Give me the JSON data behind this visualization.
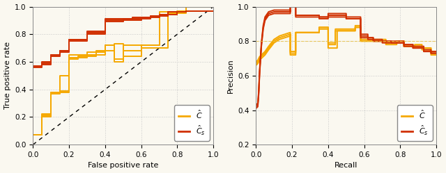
{
  "fig_width": 6.4,
  "fig_height": 2.49,
  "dpi": 100,
  "background_color": "#faf8f0",
  "grid_color": "#c8c8c8",
  "color_C_hat": "#F5A800",
  "color_Cs_hat": "#D03000",
  "roc_xlabel": "False positive rate",
  "roc_ylabel": "True positive rate",
  "pr_xlabel": "Recall",
  "pr_ylabel": "Precision",
  "roc_xlim": [
    0,
    1
  ],
  "roc_ylim": [
    0,
    1
  ],
  "pr_xlim": [
    0,
    1
  ],
  "pr_ylim": [
    0.2,
    1.0
  ],
  "legend_label_C": "$\\hat{C}$",
  "legend_label_Cs": "$\\hat{C}_s$",
  "roc_C_hat_curves": [
    [
      [
        0,
        0,
        0.05,
        0.05,
        0.1,
        0.1,
        0.15,
        0.15,
        0.2,
        0.2,
        0.3,
        0.3,
        0.4,
        0.4,
        0.45,
        0.45,
        0.5,
        0.5,
        0.6,
        0.6,
        0.75,
        0.75,
        0.85,
        0.85,
        1.0
      ],
      [
        0,
        0.07,
        0.07,
        0.22,
        0.22,
        0.38,
        0.38,
        0.5,
        0.5,
        0.65,
        0.65,
        0.67,
        0.67,
        0.72,
        0.72,
        0.62,
        0.62,
        0.72,
        0.72,
        0.7,
        0.7,
        0.95,
        0.95,
        0.97,
        0.97
      ]
    ],
    [
      [
        0,
        0,
        0.05,
        0.05,
        0.1,
        0.1,
        0.15,
        0.15,
        0.2,
        0.2,
        0.25,
        0.25,
        0.35,
        0.35,
        0.45,
        0.45,
        0.5,
        0.5,
        0.6,
        0.6,
        0.7,
        0.7,
        0.8,
        0.8,
        0.85,
        0.85,
        1.0
      ],
      [
        0,
        0.07,
        0.07,
        0.2,
        0.2,
        0.37,
        0.37,
        0.39,
        0.39,
        0.62,
        0.62,
        0.64,
        0.64,
        0.68,
        0.68,
        0.73,
        0.73,
        0.64,
        0.64,
        0.72,
        0.72,
        0.94,
        0.94,
        0.97,
        0.97,
        1.0,
        1.0
      ]
    ],
    [
      [
        0,
        0,
        0.05,
        0.05,
        0.1,
        0.1,
        0.2,
        0.2,
        0.3,
        0.3,
        0.4,
        0.4,
        0.45,
        0.45,
        0.5,
        0.5,
        0.6,
        0.6,
        0.7,
        0.7,
        0.85,
        0.85,
        1.0
      ],
      [
        0,
        0.07,
        0.07,
        0.21,
        0.21,
        0.38,
        0.38,
        0.63,
        0.63,
        0.65,
        0.65,
        0.72,
        0.72,
        0.6,
        0.6,
        0.68,
        0.68,
        0.72,
        0.72,
        0.96,
        0.96,
        0.97,
        0.97
      ]
    ]
  ],
  "roc_Cs_hat_curves": [
    [
      [
        0,
        0,
        0.05,
        0.05,
        0.1,
        0.1,
        0.15,
        0.15,
        0.2,
        0.2,
        0.3,
        0.3,
        0.4,
        0.4,
        0.5,
        0.5,
        0.6,
        0.6,
        0.65,
        0.65,
        0.75,
        0.75,
        0.85,
        0.85,
        1.0
      ],
      [
        0,
        0.57,
        0.57,
        0.6,
        0.6,
        0.65,
        0.65,
        0.68,
        0.68,
        0.76,
        0.76,
        0.82,
        0.82,
        0.91,
        0.91,
        0.9,
        0.9,
        0.91,
        0.91,
        0.93,
        0.93,
        0.96,
        0.96,
        0.97,
        0.97
      ]
    ],
    [
      [
        0,
        0,
        0.05,
        0.05,
        0.1,
        0.1,
        0.15,
        0.15,
        0.2,
        0.2,
        0.3,
        0.3,
        0.4,
        0.4,
        0.5,
        0.5,
        0.55,
        0.55,
        0.65,
        0.65,
        0.75,
        0.75,
        0.85,
        0.85,
        1.0
      ],
      [
        0,
        0.56,
        0.56,
        0.59,
        0.59,
        0.64,
        0.64,
        0.67,
        0.67,
        0.76,
        0.76,
        0.8,
        0.8,
        0.9,
        0.9,
        0.91,
        0.91,
        0.92,
        0.92,
        0.93,
        0.93,
        0.96,
        0.96,
        0.97,
        0.97
      ]
    ],
    [
      [
        0,
        0,
        0.05,
        0.05,
        0.1,
        0.1,
        0.15,
        0.15,
        0.2,
        0.2,
        0.3,
        0.3,
        0.4,
        0.4,
        0.5,
        0.5,
        0.6,
        0.6,
        0.7,
        0.7,
        0.8,
        0.8,
        0.85,
        0.85,
        1.0
      ],
      [
        0,
        0.57,
        0.57,
        0.58,
        0.58,
        0.65,
        0.65,
        0.68,
        0.68,
        0.75,
        0.75,
        0.81,
        0.81,
        0.89,
        0.89,
        0.91,
        0.91,
        0.92,
        0.92,
        0.94,
        0.94,
        0.96,
        0.96,
        0.97,
        0.97
      ]
    ]
  ],
  "pr_C_hat_smooth": [
    [
      0.0,
      0.01,
      0.02,
      0.03,
      0.05,
      0.07,
      0.1,
      0.13,
      0.16,
      0.19
    ],
    [
      0.67,
      0.68,
      0.7,
      0.71,
      0.73,
      0.76,
      0.8,
      0.82,
      0.83,
      0.84
    ]
  ],
  "pr_Cs_hat_smooth": [
    [
      0.0,
      0.01,
      0.015,
      0.02,
      0.03,
      0.04,
      0.05,
      0.07,
      0.1,
      0.13,
      0.16,
      0.19
    ],
    [
      0.42,
      0.43,
      0.5,
      0.62,
      0.78,
      0.88,
      0.93,
      0.96,
      0.97,
      0.97,
      0.97,
      0.97
    ]
  ],
  "pr_C_hat_curves": [
    [
      [
        0.19,
        0.19,
        0.22,
        0.22,
        0.35,
        0.35,
        0.4,
        0.4,
        0.45,
        0.45,
        0.55,
        0.55,
        0.58,
        0.58,
        0.62,
        0.62,
        0.65,
        0.65,
        0.7,
        0.7,
        0.72,
        0.72,
        0.78,
        0.78,
        0.82,
        0.82,
        0.88,
        0.88,
        0.92,
        0.92,
        0.97,
        0.97,
        1.0
      ],
      [
        0.84,
        0.72,
        0.72,
        0.85,
        0.85,
        0.87,
        0.87,
        0.76,
        0.76,
        0.86,
        0.86,
        0.88,
        0.88,
        0.8,
        0.8,
        0.8,
        0.8,
        0.8,
        0.8,
        0.8,
        0.8,
        0.78,
        0.78,
        0.8,
        0.8,
        0.77,
        0.77,
        0.77,
        0.77,
        0.75,
        0.75,
        0.72,
        0.72
      ]
    ],
    [
      [
        0.19,
        0.19,
        0.22,
        0.22,
        0.35,
        0.35,
        0.4,
        0.4,
        0.44,
        0.44,
        0.55,
        0.55,
        0.58,
        0.58,
        0.62,
        0.62,
        0.65,
        0.65,
        0.7,
        0.7,
        0.72,
        0.72,
        0.78,
        0.78,
        0.82,
        0.82,
        0.88,
        0.88,
        0.92,
        0.92,
        0.97,
        0.97,
        1.0
      ],
      [
        0.84,
        0.73,
        0.73,
        0.85,
        0.85,
        0.88,
        0.88,
        0.78,
        0.78,
        0.86,
        0.86,
        0.88,
        0.88,
        0.8,
        0.8,
        0.8,
        0.8,
        0.8,
        0.8,
        0.8,
        0.8,
        0.79,
        0.79,
        0.8,
        0.8,
        0.77,
        0.77,
        0.78,
        0.78,
        0.76,
        0.76,
        0.74,
        0.74
      ]
    ],
    [
      [
        0.19,
        0.19,
        0.22,
        0.22,
        0.35,
        0.35,
        0.4,
        0.4,
        0.44,
        0.44,
        0.55,
        0.55,
        0.58,
        0.58,
        0.62,
        0.62,
        0.65,
        0.65,
        0.7,
        0.7,
        0.72,
        0.72,
        0.78,
        0.78,
        0.82,
        0.82,
        0.88,
        0.88,
        0.92,
        0.92,
        0.97,
        0.97,
        1.0
      ],
      [
        0.84,
        0.74,
        0.74,
        0.85,
        0.85,
        0.88,
        0.88,
        0.79,
        0.79,
        0.87,
        0.87,
        0.89,
        0.89,
        0.81,
        0.81,
        0.81,
        0.81,
        0.81,
        0.81,
        0.81,
        0.81,
        0.79,
        0.79,
        0.8,
        0.8,
        0.77,
        0.77,
        0.77,
        0.77,
        0.76,
        0.76,
        0.73,
        0.73
      ]
    ]
  ],
  "pr_Cs_hat_curves": [
    [
      [
        0.19,
        0.19,
        0.22,
        0.22,
        0.35,
        0.35,
        0.4,
        0.4,
        0.5,
        0.5,
        0.58,
        0.58,
        0.62,
        0.62,
        0.65,
        0.65,
        0.7,
        0.7,
        0.75,
        0.75,
        0.82,
        0.82,
        0.87,
        0.87,
        0.93,
        0.93,
        0.97,
        0.97,
        1.0
      ],
      [
        0.97,
        1.0,
        1.0,
        0.95,
        0.95,
        0.94,
        0.94,
        0.96,
        0.96,
        0.94,
        0.94,
        0.84,
        0.84,
        0.82,
        0.82,
        0.81,
        0.81,
        0.8,
        0.8,
        0.8,
        0.8,
        0.78,
        0.78,
        0.77,
        0.77,
        0.75,
        0.75,
        0.74,
        0.74
      ]
    ],
    [
      [
        0.19,
        0.19,
        0.22,
        0.22,
        0.35,
        0.35,
        0.4,
        0.4,
        0.5,
        0.5,
        0.58,
        0.58,
        0.62,
        0.62,
        0.65,
        0.65,
        0.7,
        0.7,
        0.75,
        0.75,
        0.82,
        0.82,
        0.87,
        0.87,
        0.93,
        0.93,
        0.97,
        0.97,
        1.0
      ],
      [
        0.97,
        1.0,
        1.0,
        0.95,
        0.95,
        0.94,
        0.94,
        0.95,
        0.95,
        0.93,
        0.93,
        0.83,
        0.83,
        0.82,
        0.82,
        0.8,
        0.8,
        0.8,
        0.8,
        0.79,
        0.79,
        0.78,
        0.78,
        0.76,
        0.76,
        0.74,
        0.74,
        0.73,
        0.73
      ]
    ],
    [
      [
        0.19,
        0.19,
        0.22,
        0.22,
        0.35,
        0.35,
        0.4,
        0.4,
        0.5,
        0.5,
        0.58,
        0.58,
        0.62,
        0.62,
        0.65,
        0.65,
        0.7,
        0.7,
        0.75,
        0.75,
        0.82,
        0.82,
        0.87,
        0.87,
        0.93,
        0.93,
        0.97,
        0.97,
        1.0
      ],
      [
        0.97,
        1.0,
        1.0,
        0.94,
        0.94,
        0.93,
        0.93,
        0.94,
        0.94,
        0.93,
        0.93,
        0.82,
        0.82,
        0.81,
        0.81,
        0.8,
        0.8,
        0.79,
        0.79,
        0.79,
        0.79,
        0.77,
        0.77,
        0.76,
        0.76,
        0.74,
        0.74,
        0.73,
        0.73
      ]
    ]
  ],
  "pr_hline_y": 0.8,
  "pr_hline_color": "#E8C040",
  "pr_hline_style": "--"
}
